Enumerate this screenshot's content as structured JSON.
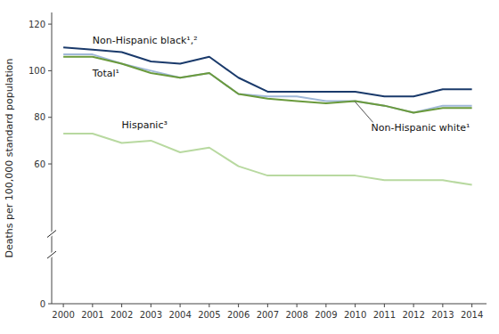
{
  "chart_data": {
    "type": "line",
    "y_label": "Deaths per 100,000 standard population",
    "x": [
      2000,
      2001,
      2002,
      2003,
      2004,
      2005,
      2006,
      2007,
      2008,
      2009,
      2010,
      2011,
      2012,
      2013,
      2014
    ],
    "series": [
      {
        "name": "Non-Hispanic black¹,²",
        "color": "#1a3a6b",
        "values": [
          110,
          109,
          108,
          104,
          103,
          106,
          97,
          91,
          91,
          91,
          91,
          89,
          89,
          92,
          92
        ]
      },
      {
        "name": "Total¹",
        "color": "#a0b8d8",
        "values": [
          107,
          107,
          103,
          100,
          97,
          99,
          90,
          89,
          89,
          87,
          87,
          85,
          82,
          85,
          85
        ]
      },
      {
        "name": "Non-Hispanic white¹",
        "color": "#6a9a3c",
        "values": [
          106,
          106,
          103,
          99,
          97,
          99,
          90,
          88,
          87,
          86,
          87,
          85,
          82,
          84,
          84
        ]
      },
      {
        "name": "Hispanic³",
        "color": "#b8d9a0",
        "values": [
          73,
          73,
          69,
          70,
          65,
          67,
          59,
          55,
          55,
          55,
          55,
          53,
          53,
          53,
          51
        ]
      }
    ],
    "xlim": [
      1999.6,
      2014.5
    ],
    "xticks": [
      2000,
      2001,
      2002,
      2003,
      2004,
      2005,
      2006,
      2007,
      2008,
      2009,
      2010,
      2011,
      2012,
      2013,
      2014
    ],
    "ylim": [
      0,
      125
    ],
    "yticks": [
      0,
      60,
      80,
      100,
      120
    ],
    "grid": false
  }
}
